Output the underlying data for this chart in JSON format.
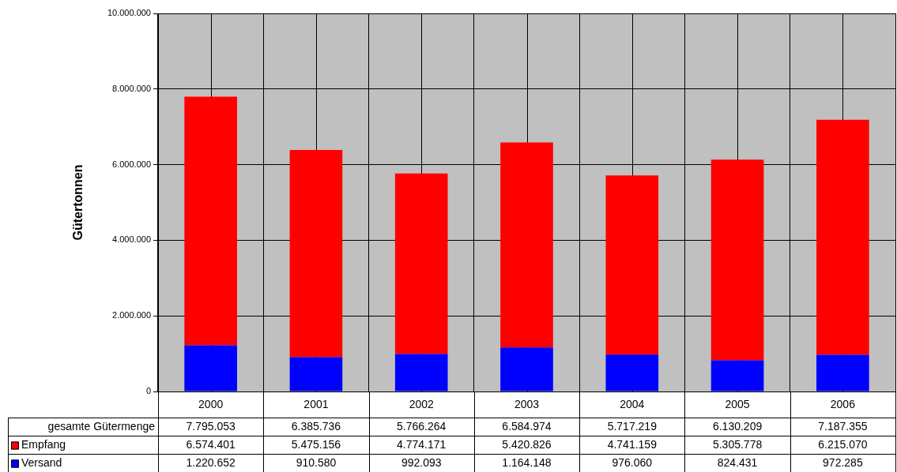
{
  "chart_data": {
    "type": "bar",
    "stacked": true,
    "ylabel": "Gütertonnen",
    "legend": "bottom left",
    "categories": [
      "2000",
      "2001",
      "2002",
      "2003",
      "2004",
      "2005",
      "2006"
    ],
    "series": [
      {
        "name": "Versand",
        "color": "#0000ff",
        "values": [
          1220652,
          910580,
          992093,
          1164148,
          976060,
          824431,
          972285
        ],
        "value_labels": [
          "1.220.652",
          "910.580",
          "992.093",
          "1.164.148",
          "976.060",
          "824.431",
          "972.285"
        ]
      },
      {
        "name": "Empfang",
        "color": "#ff0000",
        "values": [
          6574401,
          5475156,
          4774171,
          5420826,
          4741159,
          5305778,
          6215070
        ],
        "value_labels": [
          "6.574.401",
          "5.475.156",
          "4.774.171",
          "5.420.826",
          "4.741.159",
          "5.305.778",
          "6.215.070"
        ]
      }
    ],
    "totals": [
      "7.795.053",
      "6.385.736",
      "5.766.264",
      "6.584.974",
      "5.717.219",
      "6.130.209",
      "7.187.355"
    ],
    "annotations": [
      "gesamte Gütermenge"
    ],
    "grid": true,
    "ylim": [
      0,
      10000000
    ],
    "yticks": [
      {
        "value": 0,
        "label": "0"
      },
      {
        "value": 2000000,
        "label": "2.000.000"
      },
      {
        "value": 4000000,
        "label": "4.000.000"
      },
      {
        "value": 6000000,
        "label": "6.000.000"
      },
      {
        "value": 8000000,
        "label": "8.000.000"
      },
      {
        "value": 10000000,
        "label": "10.000.000"
      }
    ]
  }
}
